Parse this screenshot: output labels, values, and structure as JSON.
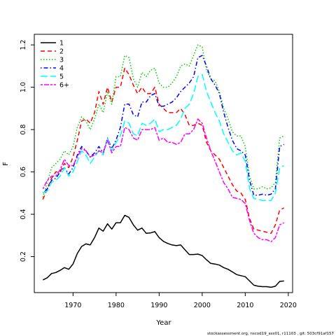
{
  "footer": "stockassessment.org, nscod19_ass01, r11103 , git: 503cf91af157",
  "chart_data": {
    "type": "line",
    "xlabel": "Year",
    "ylabel": "F",
    "xlim": [
      1961,
      2021
    ],
    "ylim": [
      0.03,
      1.25
    ],
    "xticks": [
      1970,
      1980,
      1990,
      2000,
      2010,
      2020
    ],
    "yticks": [
      0.2,
      0.4,
      0.6,
      0.8,
      1.0,
      1.2
    ],
    "ytick_labels": [
      "0.2",
      "0.4",
      "0.6",
      "0.8",
      "1.0",
      "1.2"
    ],
    "legend_position": "top-left",
    "grid": false,
    "x": [
      1963,
      1964,
      1965,
      1966,
      1967,
      1968,
      1969,
      1970,
      1971,
      1972,
      1973,
      1974,
      1975,
      1976,
      1977,
      1978,
      1979,
      1980,
      1981,
      1982,
      1983,
      1984,
      1985,
      1986,
      1987,
      1988,
      1989,
      1990,
      1991,
      1992,
      1993,
      1994,
      1995,
      1996,
      1997,
      1998,
      1999,
      2000,
      2001,
      2002,
      2003,
      2004,
      2005,
      2006,
      2007,
      2008,
      2009,
      2010,
      2011,
      2012,
      2013,
      2014,
      2015,
      2016,
      2017,
      2018,
      2019
    ],
    "series": [
      {
        "name": "1",
        "color": "#000000",
        "dash": "solid",
        "values": [
          0.09,
          0.1,
          0.12,
          0.125,
          0.135,
          0.148,
          0.14,
          0.165,
          0.215,
          0.248,
          0.26,
          0.255,
          0.29,
          0.335,
          0.32,
          0.355,
          0.33,
          0.36,
          0.36,
          0.395,
          0.385,
          0.35,
          0.325,
          0.335,
          0.31,
          0.312,
          0.318,
          0.29,
          0.272,
          0.262,
          0.255,
          0.252,
          0.255,
          0.232,
          0.21,
          0.21,
          0.212,
          0.205,
          0.185,
          0.168,
          0.165,
          0.16,
          0.148,
          0.14,
          0.128,
          0.115,
          0.11,
          0.105,
          0.085,
          0.065,
          0.06,
          0.058,
          0.058,
          0.055,
          0.06,
          0.083,
          0.085
        ]
      },
      {
        "name": "2",
        "color": "#ff0000",
        "dash": "dashed",
        "values": [
          0.47,
          0.52,
          0.57,
          0.6,
          0.6,
          0.64,
          0.62,
          0.67,
          0.75,
          0.84,
          0.85,
          0.83,
          0.88,
          0.98,
          0.92,
          1.0,
          0.93,
          1.0,
          1.0,
          1.09,
          1.06,
          1.01,
          0.97,
          1.0,
          0.97,
          0.97,
          1.0,
          0.92,
          0.9,
          0.88,
          0.88,
          0.88,
          0.9,
          0.87,
          0.82,
          0.82,
          0.83,
          0.82,
          0.74,
          0.7,
          0.68,
          0.66,
          0.62,
          0.58,
          0.54,
          0.51,
          0.5,
          0.47,
          0.38,
          0.33,
          0.325,
          0.32,
          0.315,
          0.31,
          0.35,
          0.42,
          0.43
        ]
      },
      {
        "name": "3",
        "color": "#00cd00",
        "dash": "dotted",
        "values": [
          0.48,
          0.55,
          0.62,
          0.64,
          0.66,
          0.7,
          0.68,
          0.72,
          0.81,
          0.86,
          0.84,
          0.8,
          0.85,
          0.92,
          0.88,
          0.98,
          0.92,
          1.05,
          1.05,
          1.15,
          1.14,
          1.04,
          1.0,
          1.07,
          1.05,
          1.08,
          1.09,
          1.02,
          1.0,
          1.0,
          1.02,
          1.05,
          1.1,
          1.11,
          1.1,
          1.15,
          1.2,
          1.19,
          1.08,
          1.04,
          1.03,
          0.98,
          0.9,
          0.85,
          0.79,
          0.77,
          0.77,
          0.72,
          0.58,
          0.52,
          0.52,
          0.53,
          0.52,
          0.525,
          0.55,
          0.76,
          0.77
        ]
      },
      {
        "name": "4",
        "color": "#0000ff",
        "dash": "dashdot",
        "values": [
          0.5,
          0.52,
          0.56,
          0.57,
          0.6,
          0.62,
          0.59,
          0.62,
          0.68,
          0.72,
          0.7,
          0.67,
          0.69,
          0.72,
          0.69,
          0.76,
          0.71,
          0.75,
          0.81,
          0.92,
          0.92,
          0.87,
          0.86,
          0.93,
          0.93,
          0.96,
          0.97,
          0.91,
          0.91,
          0.92,
          0.93,
          0.95,
          0.98,
          1.0,
          1.02,
          1.05,
          1.14,
          1.15,
          1.1,
          1.04,
          1.01,
          0.97,
          0.88,
          0.81,
          0.75,
          0.71,
          0.7,
          0.68,
          0.56,
          0.49,
          0.49,
          0.495,
          0.49,
          0.495,
          0.52,
          0.72,
          0.73
        ]
      },
      {
        "name": "5",
        "color": "#00ffff",
        "dash": "longdash",
        "values": [
          0.5,
          0.51,
          0.55,
          0.56,
          0.58,
          0.62,
          0.58,
          0.6,
          0.65,
          0.7,
          0.68,
          0.64,
          0.67,
          0.7,
          0.68,
          0.76,
          0.7,
          0.74,
          0.77,
          0.84,
          0.83,
          0.78,
          0.77,
          0.83,
          0.82,
          0.83,
          0.85,
          0.79,
          0.8,
          0.8,
          0.81,
          0.82,
          0.85,
          0.9,
          0.92,
          0.97,
          1.05,
          1.06,
          0.98,
          0.93,
          0.88,
          0.84,
          0.78,
          0.74,
          0.7,
          0.68,
          0.69,
          0.65,
          0.52,
          0.475,
          0.47,
          0.465,
          0.465,
          0.465,
          0.5,
          0.62,
          0.63
        ]
      },
      {
        "name": "6+",
        "color": "#ff00ff",
        "dash": "twodash",
        "values": [
          0.52,
          0.56,
          0.58,
          0.58,
          0.61,
          0.66,
          0.63,
          0.63,
          0.67,
          0.71,
          0.7,
          0.67,
          0.68,
          0.7,
          0.69,
          0.75,
          0.69,
          0.72,
          0.72,
          0.81,
          0.8,
          0.76,
          0.75,
          0.8,
          0.8,
          0.8,
          0.81,
          0.75,
          0.76,
          0.74,
          0.74,
          0.73,
          0.74,
          0.78,
          0.78,
          0.8,
          0.85,
          0.83,
          0.76,
          0.7,
          0.65,
          0.6,
          0.55,
          0.52,
          0.48,
          0.475,
          0.47,
          0.45,
          0.37,
          0.31,
          0.29,
          0.28,
          0.28,
          0.27,
          0.29,
          0.35,
          0.36
        ]
      }
    ]
  }
}
